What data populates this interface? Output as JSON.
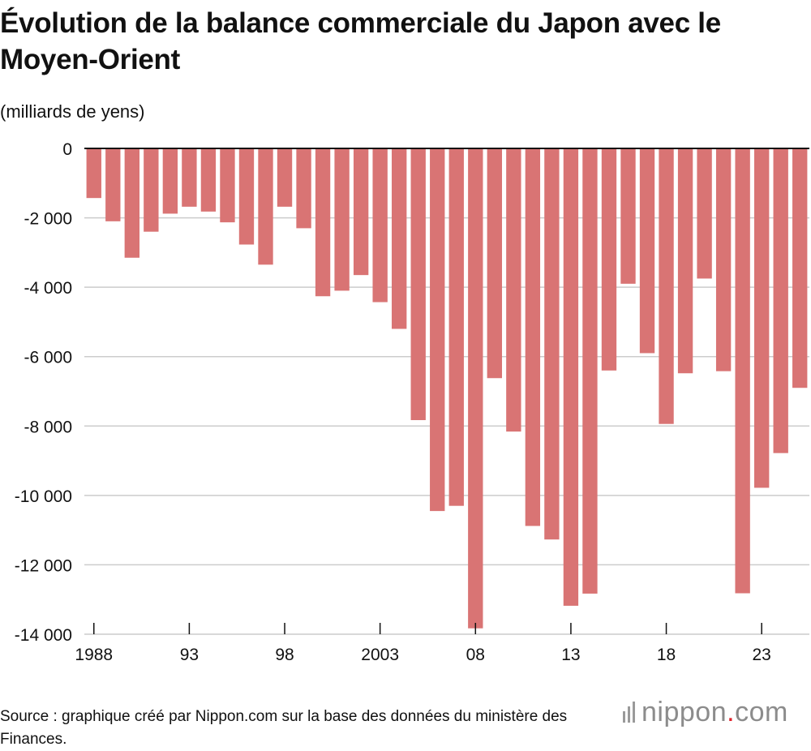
{
  "header": {
    "title": "Évolution de la balance commerciale du Japon avec le Moyen-Orient",
    "unit": "(milliards de yens)"
  },
  "footer": {
    "source": "Source : graphique créé par Nippon.com sur la base des données du ministère des Finances.",
    "logo_main": "nippon",
    "logo_dot": ".",
    "logo_suffix": "com"
  },
  "colors": {
    "bar": "#d97474",
    "grid": "#cccccc",
    "axis": "#111111",
    "logo_dot": "#e0222b"
  },
  "chart_data": {
    "type": "bar",
    "title": "Évolution de la balance commerciale du Japon avec le Moyen-Orient",
    "ylabel": "(milliards de yens)",
    "xlabel": "",
    "ylim": [
      -14000,
      0
    ],
    "yticks": [
      0,
      -2000,
      -4000,
      -6000,
      -8000,
      -10000,
      -12000,
      -14000
    ],
    "ytick_labels": [
      "0",
      "-2 000",
      "-4 000",
      "-6 000",
      "-8 000",
      "-10 000",
      "-12 000",
      "-14 000"
    ],
    "grid": true,
    "categories": [
      1988,
      1989,
      1990,
      1991,
      1992,
      1993,
      1994,
      1995,
      1996,
      1997,
      1998,
      1999,
      2000,
      2001,
      2002,
      2003,
      2004,
      2005,
      2006,
      2007,
      2008,
      2009,
      2010,
      2011,
      2012,
      2013,
      2014,
      2015,
      2016,
      2017,
      2018,
      2019,
      2020,
      2021,
      2022,
      2023,
      2024,
      2025
    ],
    "values": [
      -1430,
      -2100,
      -3150,
      -2400,
      -1880,
      -1680,
      -1820,
      -2130,
      -2770,
      -3350,
      -1680,
      -2300,
      -4260,
      -4100,
      -3650,
      -4430,
      -5200,
      -7830,
      -10450,
      -10300,
      -13830,
      -6620,
      -8160,
      -10880,
      -11270,
      -13180,
      -12830,
      -6400,
      -3900,
      -5900,
      -7940,
      -6480,
      -3750,
      -6420,
      -12820,
      -9780,
      -8780,
      -6900
    ],
    "xtick_values": [
      1988,
      1993,
      1998,
      2003,
      2008,
      2013,
      2018,
      2023
    ],
    "xtick_labels": [
      "1988",
      "93",
      "98",
      "2003",
      "08",
      "13",
      "18",
      "23"
    ]
  }
}
